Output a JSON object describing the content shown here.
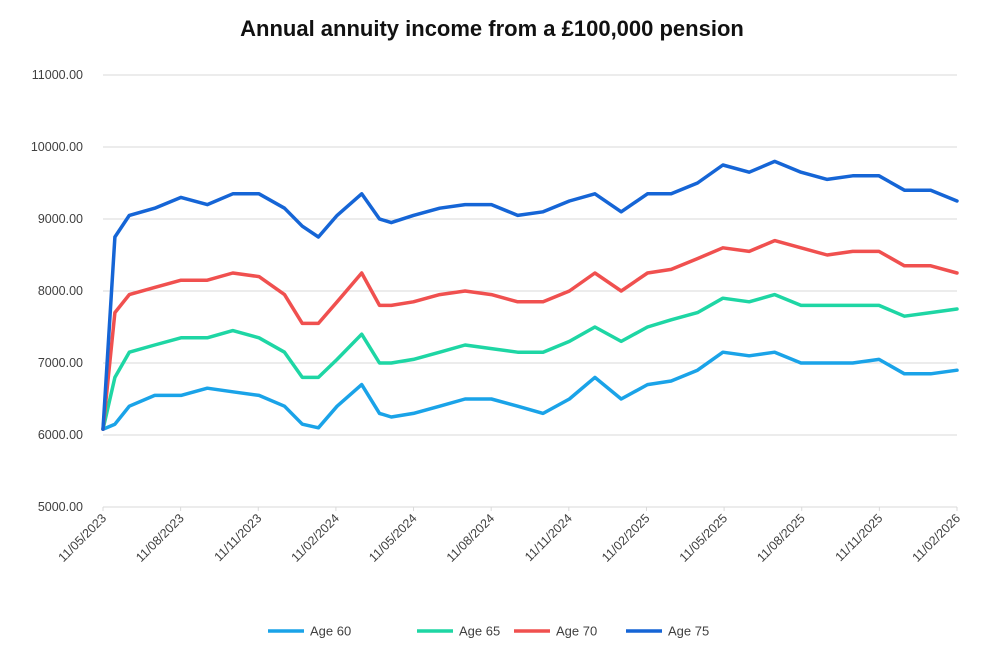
{
  "chart_data": {
    "type": "line",
    "title": "Annual annuity income from a £100,000 pension",
    "xlabel": "",
    "ylabel": "",
    "ylim": [
      5000,
      11000
    ],
    "yticks": [
      "5000.00",
      "6000.00",
      "7000.00",
      "8000.00",
      "9000.00",
      "10000.00",
      "11000.00"
    ],
    "ytick_values": [
      5000,
      6000,
      7000,
      8000,
      9000,
      10000,
      11000
    ],
    "xtick_labels": [
      "11/05/2023",
      "11/08/2023",
      "11/11/2023",
      "11/02/2024",
      "11/05/2024",
      "11/08/2024",
      "11/11/2024",
      "11/02/2025",
      "11/05/2025",
      "11/08/2025",
      "11/11/2025",
      "11/02/2026"
    ],
    "x_range": [
      "2023-05-11",
      "2026-02-11"
    ],
    "grid": "horizontal",
    "legend_position": "bottom",
    "x": [
      "2023-05-11",
      "2023-05-25",
      "2023-06-11",
      "2023-07-11",
      "2023-08-11",
      "2023-09-11",
      "2023-10-11",
      "2023-11-11",
      "2023-12-11",
      "2024-01-01",
      "2024-01-20",
      "2024-02-11",
      "2024-03-11",
      "2024-04-01",
      "2024-04-15",
      "2024-05-11",
      "2024-06-11",
      "2024-07-11",
      "2024-08-11",
      "2024-09-11",
      "2024-10-11",
      "2024-11-11",
      "2024-12-11",
      "2025-01-11",
      "2025-02-11",
      "2025-03-11",
      "2025-04-11",
      "2025-05-11",
      "2025-06-11",
      "2025-07-11",
      "2025-08-11",
      "2025-09-11",
      "2025-10-11",
      "2025-11-11",
      "2025-12-11",
      "2026-01-11",
      "2026-02-11"
    ],
    "series": [
      {
        "name": "Age 60",
        "color": "#1aa3e8",
        "values": [
          6080,
          6150,
          6400,
          6550,
          6550,
          6650,
          6600,
          6550,
          6400,
          6150,
          6100,
          6400,
          6700,
          6300,
          6250,
          6300,
          6400,
          6500,
          6500,
          6400,
          6300,
          6500,
          6800,
          6500,
          6700,
          6750,
          6900,
          7150,
          7100,
          7150,
          7000,
          7000,
          7000,
          7050,
          6850,
          6850,
          6900
        ]
      },
      {
        "name": "Age 65",
        "color": "#1ed6a4",
        "values": [
          6080,
          6800,
          7150,
          7250,
          7350,
          7350,
          7450,
          7350,
          7150,
          6800,
          6800,
          7050,
          7400,
          7000,
          7000,
          7050,
          7150,
          7250,
          7200,
          7150,
          7150,
          7300,
          7500,
          7300,
          7500,
          7600,
          7700,
          7900,
          7850,
          7950,
          7800,
          7800,
          7800,
          7800,
          7650,
          7700,
          7750
        ]
      },
      {
        "name": "Age 70",
        "color": "#f0504f",
        "values": [
          6080,
          7700,
          7950,
          8050,
          8150,
          8150,
          8250,
          8200,
          7950,
          7550,
          7550,
          7850,
          8250,
          7800,
          7800,
          7850,
          7950,
          8000,
          7950,
          7850,
          7850,
          8000,
          8250,
          8000,
          8250,
          8300,
          8450,
          8600,
          8550,
          8700,
          8600,
          8500,
          8550,
          8550,
          8350,
          8350,
          8250
        ]
      },
      {
        "name": "Age 75",
        "color": "#1565d6",
        "values": [
          6080,
          8750,
          9050,
          9150,
          9300,
          9200,
          9350,
          9350,
          9150,
          8900,
          8750,
          9050,
          9350,
          9000,
          8950,
          9050,
          9150,
          9200,
          9200,
          9050,
          9100,
          9250,
          9350,
          9100,
          9350,
          9350,
          9500,
          9750,
          9650,
          9800,
          9650,
          9550,
          9600,
          9600,
          9400,
          9400,
          9250
        ]
      }
    ]
  }
}
